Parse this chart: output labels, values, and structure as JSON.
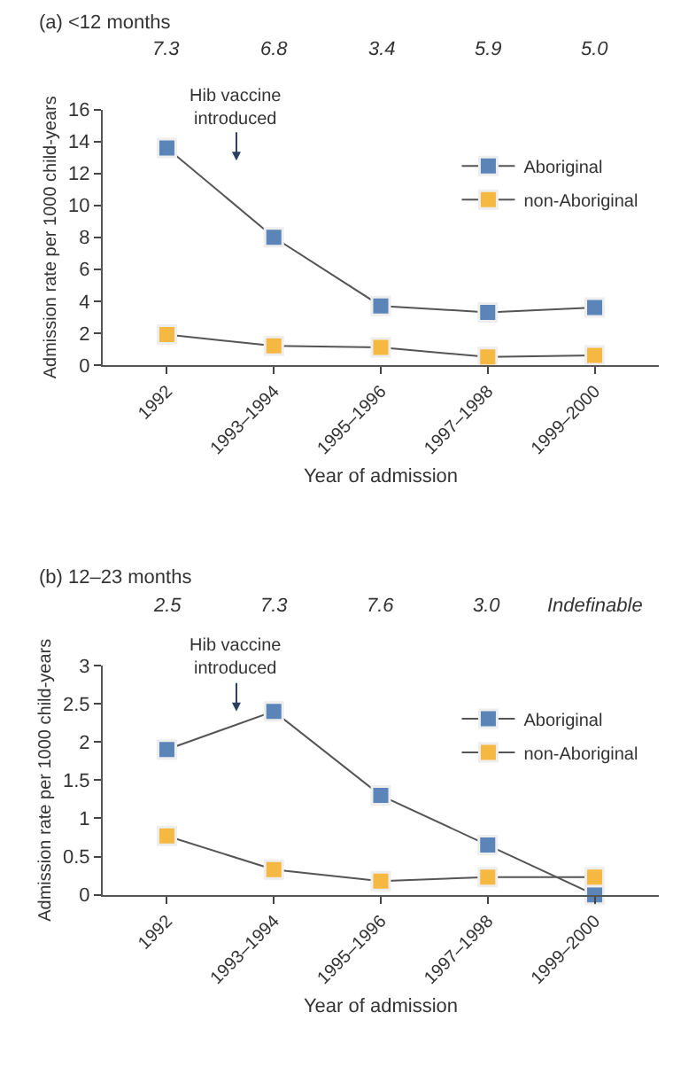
{
  "chart_data": [
    {
      "type": "line",
      "title": "(a) <12 months",
      "xlabel": "Year of admission",
      "ylabel": "Admission rate per 1000 child-years",
      "categories": [
        "1992",
        "1993–1994",
        "1995–1996",
        "1997–1998",
        "1999–2000"
      ],
      "series": [
        {
          "name": "Aboriginal",
          "color": "#5b84b8",
          "values": [
            13.6,
            8.0,
            3.7,
            3.3,
            3.6
          ]
        },
        {
          "name": "non-Aboriginal",
          "color": "#f5b942",
          "values": [
            1.9,
            1.2,
            1.1,
            0.5,
            0.6
          ]
        }
      ],
      "ylim": [
        0,
        16
      ],
      "yticks": [
        0,
        2,
        4,
        6,
        8,
        10,
        12,
        14,
        16
      ],
      "annotations": [
        "7.3",
        "6.8",
        "3.4",
        "5.9",
        "5.0",
        "Hib vaccine\nintroduced"
      ],
      "legend": "top right",
      "marker": "square",
      "line_style": "solid"
    },
    {
      "type": "line",
      "title": "(b) 12–23 months",
      "xlabel": "Year of admission",
      "ylabel": "Admission rate per 1000 child-years",
      "categories": [
        "1992",
        "1993–1994",
        "1995–1996",
        "1997–1998",
        "1999–2000"
      ],
      "series": [
        {
          "name": "Aboriginal",
          "color": "#5b84b8",
          "values": [
            1.9,
            2.4,
            1.3,
            0.65,
            0.0
          ]
        },
        {
          "name": "non-Aboriginal",
          "color": "#f5b942",
          "values": [
            0.77,
            0.33,
            0.18,
            0.23,
            0.23
          ]
        }
      ],
      "ylim": [
        0,
        3
      ],
      "yticks": [
        0,
        0.5,
        1,
        1.5,
        2,
        2.5,
        3
      ],
      "annotations": [
        "2.5",
        "7.3",
        "7.6",
        "3.0",
        "Indefinable",
        "Hib vaccine\nintroduced"
      ],
      "legend": "top right",
      "marker": "square",
      "line_style": "solid"
    }
  ]
}
